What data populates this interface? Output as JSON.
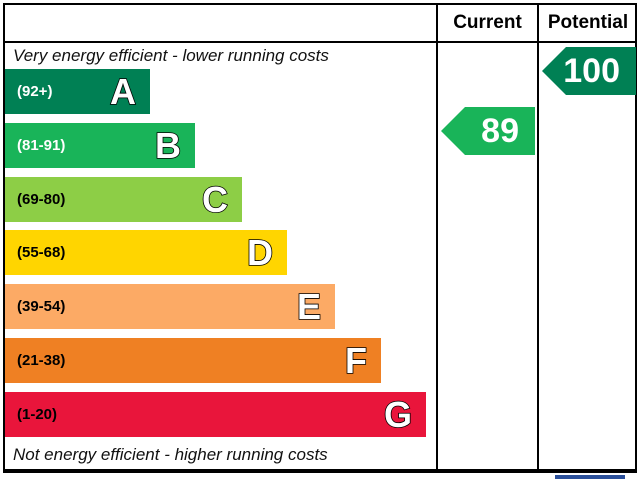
{
  "headers": {
    "current": "Current",
    "potential": "Potential"
  },
  "captions": {
    "top": "Very energy efficient - lower running costs",
    "bottom": "Not energy efficient - higher running costs"
  },
  "chart_data": {
    "type": "bar",
    "title": "",
    "categories": [
      "A",
      "B",
      "C",
      "D",
      "E",
      "F",
      "G"
    ],
    "bands": [
      {
        "letter": "A",
        "range": "(92+)",
        "color": "#008054",
        "range_color": "#ffffff"
      },
      {
        "letter": "B",
        "range": "(81-91)",
        "color": "#19b459",
        "range_color": "#ffffff"
      },
      {
        "letter": "C",
        "range": "(69-80)",
        "color": "#8dce46",
        "range_color": "#000000"
      },
      {
        "letter": "D",
        "range": "(55-68)",
        "color": "#ffd500",
        "range_color": "#000000"
      },
      {
        "letter": "E",
        "range": "(39-54)",
        "color": "#fcaa65",
        "range_color": "#000000"
      },
      {
        "letter": "F",
        "range": "(21-38)",
        "color": "#ef8023",
        "range_color": "#000000"
      },
      {
        "letter": "G",
        "range": "(1-20)",
        "color": "#e9153b",
        "range_color": "#000000"
      }
    ],
    "current": {
      "value": 89,
      "band": "B",
      "color": "#19b459"
    },
    "potential": {
      "value": 100,
      "band": "A",
      "color": "#008054"
    }
  }
}
